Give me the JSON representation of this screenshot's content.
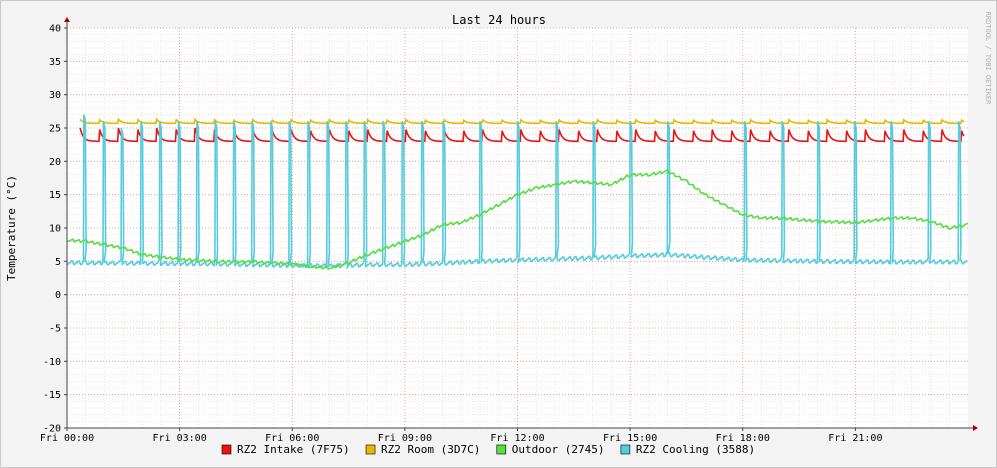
{
  "chart_data": {
    "type": "line",
    "title": "Last 24 hours",
    "ylabel": "Temperature (°C)",
    "watermark": "RRDTOOL / TOBI OETIKER",
    "ylim": [
      -20,
      40
    ],
    "y_ticks": [
      40,
      35,
      30,
      25,
      20,
      15,
      10,
      5,
      0,
      -5,
      -10,
      -15,
      -20
    ],
    "x_ticks": [
      "Fri 00:00",
      "Fri 03:00",
      "Fri 06:00",
      "Fri 09:00",
      "Fri 12:00",
      "Fri 15:00",
      "Fri 18:00",
      "Fri 21:00"
    ],
    "x_hours_range": [
      0,
      24
    ],
    "grid": true,
    "legend_position": "bottom",
    "series": [
      {
        "name": "RZ2 Intake (7F75)",
        "color": "#ee1111",
        "base": 23.0,
        "spike": 25.0,
        "period": 0.51,
        "x": [
          0,
          24
        ],
        "values": [
          23.0,
          23.0
        ]
      },
      {
        "name": "RZ2 Room (3D7C)",
        "color": "#e6b800",
        "base": 25.7,
        "spike": 26.3,
        "period": 0.51,
        "x": [
          0,
          24
        ],
        "values": [
          25.7,
          25.7
        ]
      },
      {
        "name": "Outdoor (2745)",
        "color": "#55dd44",
        "x": [
          0,
          0.5,
          1,
          1.5,
          2,
          3,
          4,
          5,
          6,
          6.5,
          7,
          7.5,
          8,
          8.5,
          9,
          9.5,
          10,
          10.5,
          11,
          11.5,
          12,
          12.5,
          13,
          13.5,
          14,
          14.5,
          15,
          15.5,
          16,
          16.5,
          17,
          17.5,
          18,
          18.5,
          19,
          20,
          21,
          22,
          22.5,
          23,
          23.5,
          24
        ],
        "values": [
          8.2,
          8.0,
          7.5,
          7.0,
          6.0,
          5.3,
          5.0,
          4.9,
          4.6,
          4.2,
          4.0,
          4.8,
          6.0,
          7.0,
          8.0,
          9.0,
          10.5,
          10.8,
          12.0,
          13.5,
          15.0,
          16.0,
          16.5,
          17.0,
          16.8,
          16.5,
          18.0,
          18.0,
          18.5,
          17.0,
          15.0,
          13.5,
          12.0,
          11.5,
          11.5,
          11.0,
          10.8,
          11.5,
          11.5,
          11.0,
          10.0,
          10.5
        ]
      },
      {
        "name": "RZ2 Cooling (3588)",
        "color": "#55ccdd",
        "x": [
          0.45,
          0.97,
          1.45,
          1.97,
          2.47,
          2.97,
          3.46,
          3.95,
          4.44,
          4.93,
          5.43,
          5.92,
          6.42,
          6.93,
          7.43,
          7.92,
          8.42,
          8.93,
          9.45,
          10.02,
          11.0,
          12.0,
          13.03,
          14.02,
          15.0,
          16.0,
          18.05,
          19.05,
          20.0,
          20.98,
          21.95,
          22.95,
          23.75
        ],
        "values": [
          27,
          26,
          25,
          26,
          26,
          26,
          26,
          26,
          26,
          26,
          26,
          26,
          26,
          26,
          26,
          26,
          26,
          26,
          26,
          26,
          26,
          26,
          26,
          26,
          26,
          26,
          26,
          26,
          26,
          26,
          26,
          26,
          26
        ],
        "baseline_x": [
          0,
          4,
          5,
          7,
          8,
          9,
          10,
          11,
          12,
          14,
          15,
          16,
          17,
          18,
          20,
          22,
          24
        ],
        "baseline_values": [
          4.8,
          4.6,
          4.5,
          4.3,
          4.5,
          4.5,
          4.7,
          5.0,
          5.2,
          5.5,
          5.8,
          6.0,
          5.6,
          5.2,
          5.0,
          4.9,
          4.9
        ]
      }
    ]
  }
}
